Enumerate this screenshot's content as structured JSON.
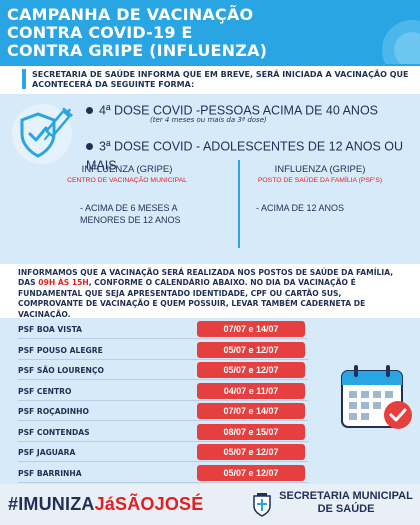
{
  "header": {
    "title_line1": "CAMPANHA DE VACINAÇÃO",
    "title_line2": "CONTRA COVID-19 E",
    "title_line3": "CONTRA GRIPE (INFLUENZA)"
  },
  "intro": {
    "text": "SECRETARIA DE SAÚDE INFORMA QUE EM BREVE, SERÁ INICIADA A VACINAÇÃO QUE ACONTECERÁ DA SEGUINTE FORMA:"
  },
  "doses": {
    "dose4": "4ª DOSE COVID -PESSOAS  ACIMA DE 40 ANOS",
    "dose4_note": "(ter 4 meses ou mais da 3ª dose)",
    "dose3": "3ª DOSE COVID - ADOLESCENTES DE 12 ANOS OU MAIS"
  },
  "flu": {
    "left": {
      "title": "INFLUENZA (GRIPE)",
      "place": "CENTRO DE VACINAÇÃO MUNICIPAL",
      "age": "-  ACIMA DE 6 MESES A MENORES DE 12 ANOS"
    },
    "right": {
      "title": "INFLUENZA (GRIPE)",
      "place": "POSTO DE SAÚDE DA FAMÍLIA (PSF'S)",
      "age": "-  ACIMA DE 12 ANOS"
    }
  },
  "info": {
    "part1": "INFORMAMOS QUE A VACINAÇÃO SERÁ REALIZADA NOS POSTOS DE SAÚDE DA FAMÍLIA, DAS ",
    "hours": "09H ÀS 15H",
    "part2": ", CONFORME O CALENDÁRIO ABAIXO. NO DIA DA VACINAÇÃO É FUNDAMENTAL QUE SEJA APRESENTADO IDENTIDADE, CPF OU CARTÃO SUS, COMPROVANTE DE VACINAÇÃO E QUEM POSSUIR, LEVAR TAMBÉM CADERNETA DE VACINAÇÃO."
  },
  "schedule": [
    {
      "name": "PSF BOA VISTA",
      "dates": "07/07  e 14/07"
    },
    {
      "name": "PSF POUSO ALEGRE",
      "dates": "05/07  e 12/07"
    },
    {
      "name": "PSF SÃO LOURENÇO",
      "dates": "05/07  e 12/07"
    },
    {
      "name": "PSF CENTRO",
      "dates": "04/07  e 11/07"
    },
    {
      "name": "PSF ROÇADINHO",
      "dates": "07/07  e 14/07"
    },
    {
      "name": "PSF CONTENDAS",
      "dates": "08/07  e 15/07"
    },
    {
      "name": "PSF JAGUARA",
      "dates": "05/07  e 12/07"
    },
    {
      "name": "PSF BARRINHA",
      "dates": "05/07  e 12/07"
    }
  ],
  "footer": {
    "hashtag_part1": "#IMUNIZA",
    "hashtag_part2": "JáSÃOJOSÉ",
    "secretaria_line1": "SECRETARIA MUNICIPAL",
    "secretaria_line2": "DE SAÚDE"
  },
  "icons": {
    "vaccine_shield": "shield-syringe-icon",
    "calendar": "calendar-check-icon",
    "crest": "municipal-crest-icon"
  },
  "colors": {
    "primary_blue": "#2aa5e4",
    "navy": "#1f2f55",
    "accent_red": "#e2201f",
    "panel_blue": "#d7eaf9"
  }
}
